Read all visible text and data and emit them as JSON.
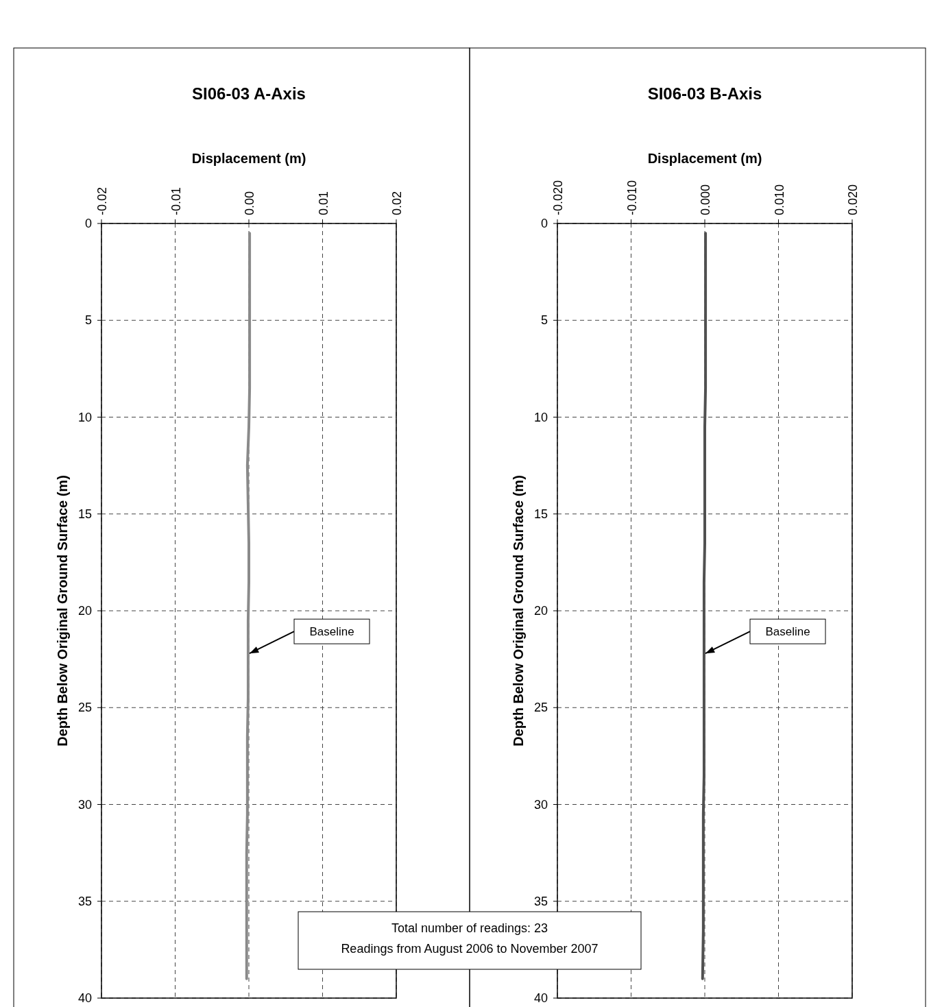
{
  "chart_data": [
    {
      "type": "line",
      "title": "SI06-03 A-Axis",
      "xlabel": "Displacement (m)",
      "ylabel": "Depth Below Original Ground Surface (m)",
      "xlim": [
        -0.02,
        0.02
      ],
      "xticks": [
        {
          "value": -0.02,
          "label": "-0.02"
        },
        {
          "value": -0.01,
          "label": "-0.01"
        },
        {
          "value": 0,
          "label": "0.00"
        },
        {
          "value": 0.01,
          "label": "0.01"
        },
        {
          "value": 0.02,
          "label": "0.02"
        }
      ],
      "ylim": [
        40,
        0
      ],
      "yticks": [
        0,
        5,
        10,
        15,
        20,
        25,
        30,
        35,
        40
      ],
      "grid": true,
      "series": [
        {
          "color": "#8a8a8a",
          "x": [
            0.0001,
            0.0001,
            0.0001,
            0.0001,
            0.0001,
            0,
            -0.0002,
            -0.0001,
            0,
            0,
            -0.0001,
            -0.0001,
            -0.0001,
            -0.0002,
            -0.0002,
            -0.0002,
            -0.0003,
            -0.0003,
            -0.0003,
            -0.0003
          ],
          "values": [
            0.5,
            2.5,
            4.5,
            6.5,
            8.5,
            10.5,
            12.5,
            14.5,
            16.5,
            18.5,
            20.5,
            22.5,
            24.5,
            26.5,
            28.5,
            30.5,
            32.5,
            34.5,
            36.5,
            39
          ]
        }
      ],
      "annotations": [
        "Baseline",
        "Total number of readings: 23",
        "Readings from August 2006 to November 2007"
      ]
    },
    {
      "type": "line",
      "title": "SI06-03 B-Axis",
      "xlabel": "Displacement (m)",
      "ylabel": "Depth Below Original Ground Surface (m)",
      "xlim": [
        -0.02,
        0.02
      ],
      "xticks": [
        {
          "value": -0.02,
          "label": "-0.020"
        },
        {
          "value": -0.01,
          "label": "-0.010"
        },
        {
          "value": 0,
          "label": "0.000"
        },
        {
          "value": 0.01,
          "label": "0.010"
        },
        {
          "value": 0.02,
          "label": "0.020"
        }
      ],
      "ylim": [
        40,
        0
      ],
      "yticks": [
        0,
        5,
        10,
        15,
        20,
        25,
        30,
        35,
        40
      ],
      "grid": true,
      "series": [
        {
          "color": "#505050",
          "x": [
            0.0001,
            0.0001,
            0.0001,
            0.0001,
            0.0001,
            0,
            0,
            0,
            0,
            -0.0001,
            -0.0001,
            -0.0001,
            -0.0001,
            -0.0001,
            -0.0001,
            -0.0002,
            -0.0002,
            -0.0002,
            -0.0002,
            -0.0003
          ],
          "values": [
            0.5,
            2.5,
            4.5,
            6.5,
            8.5,
            10.5,
            12.5,
            14.5,
            16.5,
            18.5,
            20.5,
            22.5,
            24.5,
            26.5,
            28.5,
            30.5,
            32.5,
            34.5,
            36.5,
            39
          ]
        }
      ],
      "annotations": [
        "Baseline"
      ]
    }
  ]
}
